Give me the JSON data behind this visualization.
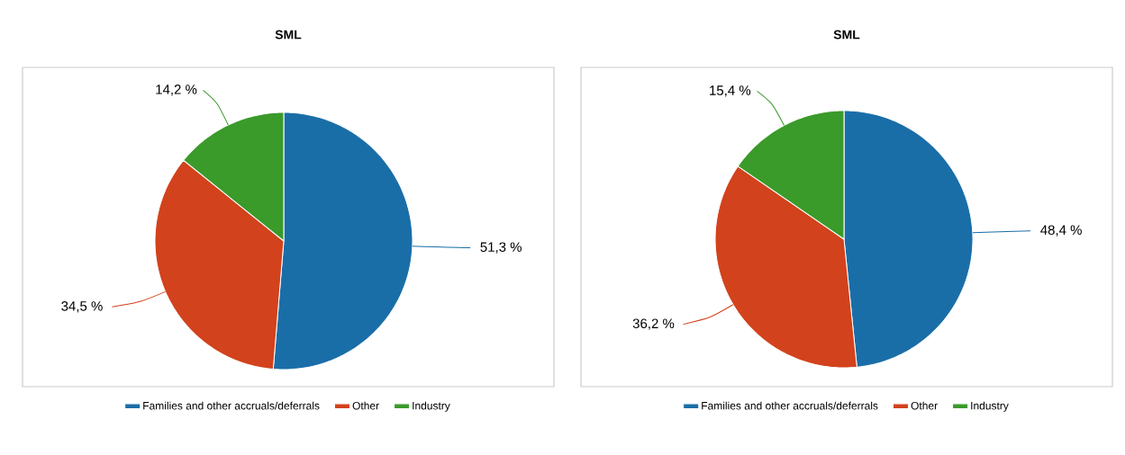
{
  "chart_data": [
    {
      "type": "pie",
      "title": "SML",
      "categories": [
        "Families and other accruals/deferrals",
        "Other",
        "Industry"
      ],
      "values": [
        51.3,
        34.5,
        14.2
      ],
      "value_labels": [
        "51,3 %",
        "34,5 %",
        "14,2 %"
      ],
      "colors": [
        "#1a6ea8",
        "#d2421c",
        "#3a9a2a"
      ],
      "legend": "bottom"
    },
    {
      "type": "pie",
      "title": "SML",
      "categories": [
        "Families and other accruals/deferrals",
        "Other",
        "Industry"
      ],
      "values": [
        48.4,
        36.2,
        15.4
      ],
      "value_labels": [
        "48,4 %",
        "36,2 %",
        "15,4 %"
      ],
      "colors": [
        "#1a6ea8",
        "#d2421c",
        "#3a9a2a"
      ],
      "legend": "bottom"
    }
  ]
}
